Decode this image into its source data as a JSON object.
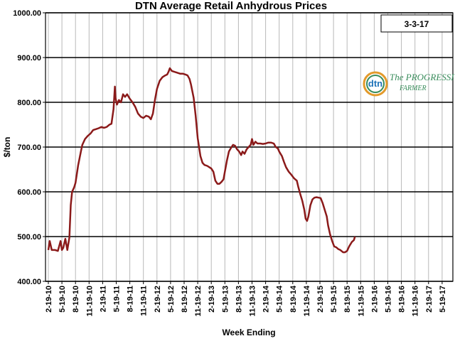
{
  "chart_data": {
    "type": "line",
    "title": "DTN Average Retail Anhydrous Prices",
    "xlabel": "Week Ending",
    "ylabel": "$/ton",
    "date_label": "3-3-17",
    "ylim": [
      400,
      1000
    ],
    "yticks": [
      "400.00",
      "500.00",
      "600.00",
      "700.00",
      "800.00",
      "900.00",
      "1000.00"
    ],
    "grid": true,
    "x_ticks": [
      "2-19-10",
      "5-19-10",
      "8-19-10",
      "11-19-10",
      "2-19-11",
      "5-19-11",
      "8-19-11",
      "11-19-11",
      "2-19-12",
      "5-19-12",
      "8-19-12",
      "11-19-12",
      "2-19-13",
      "5-19-13",
      "8-19-13",
      "11-19-13",
      "2-19-14",
      "5-19-14",
      "8-19-14",
      "11-19-14",
      "2-19-15",
      "5-19-15",
      "8-19-15",
      "11-19-15",
      "2-19-16",
      "5-19-16",
      "8-19-16",
      "11-19-16",
      "2-19-17",
      "5-19-17"
    ],
    "series": [
      {
        "color": "#8b1a1a",
        "points": [
          [
            0,
            470
          ],
          [
            0.1,
            490
          ],
          [
            0.25,
            470
          ],
          [
            0.5,
            470
          ],
          [
            0.7,
            468
          ],
          [
            0.9,
            490
          ],
          [
            1.0,
            470
          ],
          [
            1.1,
            475
          ],
          [
            1.25,
            495
          ],
          [
            1.4,
            470
          ],
          [
            1.55,
            498
          ],
          [
            1.65,
            570
          ],
          [
            1.75,
            600
          ],
          [
            1.9,
            610
          ],
          [
            2.0,
            620
          ],
          [
            2.1,
            640
          ],
          [
            2.2,
            660
          ],
          [
            2.4,
            690
          ],
          [
            2.5,
            705
          ],
          [
            2.7,
            718
          ],
          [
            2.9,
            725
          ],
          [
            3.1,
            730
          ],
          [
            3.3,
            738
          ],
          [
            3.5,
            740
          ],
          [
            3.7,
            742
          ],
          [
            3.9,
            745
          ],
          [
            4.1,
            743
          ],
          [
            4.3,
            745
          ],
          [
            4.5,
            750
          ],
          [
            4.65,
            752
          ],
          [
            4.8,
            785
          ],
          [
            4.9,
            835
          ],
          [
            4.95,
            810
          ],
          [
            5.05,
            795
          ],
          [
            5.2,
            805
          ],
          [
            5.35,
            800
          ],
          [
            5.5,
            818
          ],
          [
            5.65,
            812
          ],
          [
            5.8,
            818
          ],
          [
            6.0,
            808
          ],
          [
            6.2,
            800
          ],
          [
            6.4,
            790
          ],
          [
            6.6,
            775
          ],
          [
            6.8,
            768
          ],
          [
            7.0,
            765
          ],
          [
            7.2,
            770
          ],
          [
            7.4,
            768
          ],
          [
            7.55,
            762
          ],
          [
            7.7,
            775
          ],
          [
            7.85,
            805
          ],
          [
            8.0,
            830
          ],
          [
            8.2,
            848
          ],
          [
            8.4,
            856
          ],
          [
            8.6,
            860
          ],
          [
            8.75,
            862
          ],
          [
            8.85,
            868
          ],
          [
            8.95,
            876
          ],
          [
            9.1,
            870
          ],
          [
            9.3,
            868
          ],
          [
            9.5,
            866
          ],
          [
            9.7,
            864
          ],
          [
            9.9,
            864
          ],
          [
            10.1,
            862
          ],
          [
            10.25,
            860
          ],
          [
            10.4,
            852
          ],
          [
            10.5,
            840
          ],
          [
            10.6,
            825
          ],
          [
            10.7,
            810
          ],
          [
            10.85,
            770
          ],
          [
            11.0,
            720
          ],
          [
            11.1,
            700
          ],
          [
            11.2,
            680
          ],
          [
            11.35,
            665
          ],
          [
            11.5,
            660
          ],
          [
            11.7,
            658
          ],
          [
            11.85,
            655
          ],
          [
            12.0,
            652
          ],
          [
            12.15,
            645
          ],
          [
            12.3,
            625
          ],
          [
            12.45,
            618
          ],
          [
            12.6,
            618
          ],
          [
            12.75,
            622
          ],
          [
            12.9,
            628
          ],
          [
            13.0,
            645
          ],
          [
            13.15,
            670
          ],
          [
            13.3,
            690
          ],
          [
            13.45,
            698
          ],
          [
            13.6,
            705
          ],
          [
            13.75,
            703
          ],
          [
            13.9,
            695
          ],
          [
            14.05,
            690
          ],
          [
            14.2,
            682
          ],
          [
            14.3,
            690
          ],
          [
            14.45,
            685
          ],
          [
            14.6,
            695
          ],
          [
            14.75,
            700
          ],
          [
            14.9,
            705
          ],
          [
            15.0,
            718
          ],
          [
            15.1,
            705
          ],
          [
            15.25,
            712
          ],
          [
            15.4,
            708
          ],
          [
            15.6,
            708
          ],
          [
            15.8,
            707
          ],
          [
            16.0,
            708
          ],
          [
            16.2,
            710
          ],
          [
            16.4,
            710
          ],
          [
            16.6,
            708
          ],
          [
            16.75,
            700
          ],
          [
            16.9,
            697
          ],
          [
            17.0,
            690
          ],
          [
            17.2,
            680
          ],
          [
            17.35,
            667
          ],
          [
            17.5,
            655
          ],
          [
            17.7,
            645
          ],
          [
            17.9,
            638
          ],
          [
            18.1,
            630
          ],
          [
            18.3,
            625
          ],
          [
            18.4,
            612
          ],
          [
            18.55,
            595
          ],
          [
            18.7,
            580
          ],
          [
            18.85,
            560
          ],
          [
            18.95,
            540
          ],
          [
            19.05,
            535
          ],
          [
            19.15,
            545
          ],
          [
            19.3,
            570
          ],
          [
            19.45,
            583
          ],
          [
            19.6,
            587
          ],
          [
            19.75,
            588
          ],
          [
            19.9,
            587
          ],
          [
            20.05,
            586
          ],
          [
            20.2,
            575
          ],
          [
            20.35,
            560
          ],
          [
            20.5,
            545
          ],
          [
            20.6,
            525
          ],
          [
            20.75,
            505
          ],
          [
            20.9,
            490
          ],
          [
            21.05,
            478
          ],
          [
            21.2,
            476
          ],
          [
            21.35,
            472
          ],
          [
            21.5,
            470
          ],
          [
            21.7,
            465
          ],
          [
            21.85,
            465
          ],
          [
            22.0,
            468
          ],
          [
            22.15,
            478
          ],
          [
            22.35,
            488
          ],
          [
            22.5,
            492
          ],
          [
            22.58,
            500
          ]
        ]
      }
    ]
  },
  "logo": {
    "text_main": "The PROGRESSIVE",
    "text_sub": "FARMER",
    "badge": "dtn"
  }
}
